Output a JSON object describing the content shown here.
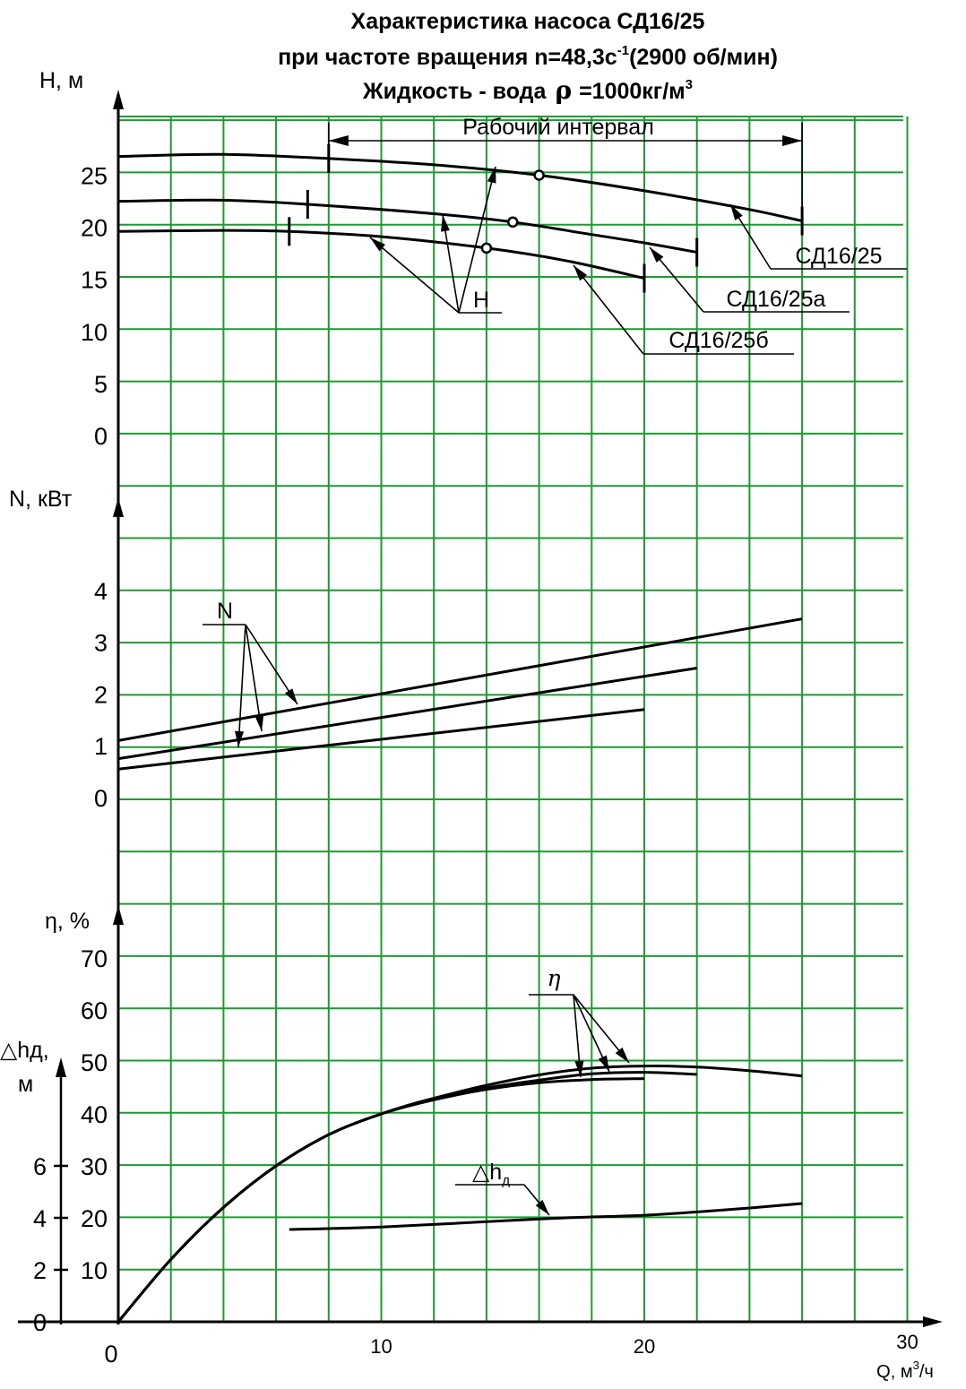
{
  "title": {
    "line1": "Характеристика насоса СД16/25",
    "line2_pre": "при частоте вращения n=48,3c",
    "line2_sup": "-1",
    "line2_post": "(2900 об/мин)",
    "line3_pre": "Жидкость - вода",
    "line3_rho": "ρ",
    "line3_post": "=1000кг/м",
    "line3_sup": "3"
  },
  "colors": {
    "grid": "#1e9a32",
    "curve": "#000000",
    "background": "#ffffff"
  },
  "chart_data": {
    "type": "line",
    "x_axis": {
      "label_pre": "Q, м",
      "label_sup": "3",
      "label_post": "/ч",
      "range": [
        0,
        30
      ],
      "ticks": [
        "0",
        "10",
        "20",
        "30"
      ]
    },
    "operating_interval": {
      "label": "Рабочий интервал",
      "range": [
        8,
        26
      ]
    },
    "panels": [
      {
        "name": "head",
        "axis_label": "Н, м",
        "ylim": [
          0,
          30
        ],
        "ticks": [
          "0",
          "5",
          "10",
          "15",
          "20",
          "25"
        ],
        "curve_label": "Н",
        "series": [
          {
            "name": "СД16/25",
            "x": [
              0,
              4,
              8,
              12,
              16,
              20,
              24,
              26
            ],
            "y": [
              26.8,
              27.0,
              26.6,
              26.0,
              25.0,
              23.5,
              21.7,
              20.6
            ],
            "limits": [
              8,
              26
            ],
            "point": [
              16,
              25.0
            ]
          },
          {
            "name": "СД16/25а",
            "x": [
              0,
              4,
              7.2,
              12,
              15,
              18,
              20,
              22
            ],
            "y": [
              22.5,
              22.6,
              22.2,
              21.3,
              20.5,
              19.3,
              18.5,
              17.6
            ],
            "limits": [
              7.2,
              22
            ],
            "point": [
              15,
              20.5
            ]
          },
          {
            "name": "СД16/25б",
            "x": [
              0,
              4,
              6.5,
              10,
              14,
              17,
              20
            ],
            "y": [
              19.6,
              19.7,
              19.6,
              19.1,
              18.0,
              16.8,
              15.1
            ],
            "limits": [
              6.5,
              20
            ],
            "point": [
              14,
              18.0
            ]
          }
        ]
      },
      {
        "name": "power",
        "axis_label": "N, кВт",
        "ylim": [
          0,
          4
        ],
        "ticks": [
          "0",
          "1",
          "2",
          "3",
          "4"
        ],
        "curve_label": "N",
        "series": [
          {
            "x": [
              0,
              26
            ],
            "y": [
              1.1,
              3.45
            ]
          },
          {
            "x": [
              0,
              22
            ],
            "y": [
              0.75,
              2.5
            ]
          },
          {
            "x": [
              0,
              20
            ],
            "y": [
              0.55,
              1.7
            ]
          }
        ]
      },
      {
        "name": "efficiency",
        "axis_label": "η, %",
        "ylim": [
          0,
          70
        ],
        "ticks": [
          "10",
          "20",
          "30",
          "40",
          "50",
          "60",
          "70"
        ],
        "curve_label": "η",
        "series": [
          {
            "x": [
              0,
              2,
              4,
              6,
              8,
              10,
              12,
              14,
              16,
              18,
              20,
              22,
              24,
              26
            ],
            "y": [
              0,
              12,
              22,
              30,
              36,
              40,
              43,
              45.5,
              47.5,
              48.8,
              49.2,
              49.0,
              48.3,
              47.3
            ]
          },
          {
            "x": [
              0,
              2,
              4,
              6,
              8,
              10,
              12,
              14,
              16,
              18,
              20,
              22
            ],
            "y": [
              0,
              12,
              22,
              30,
              36,
              40,
              43,
              45,
              46.5,
              47.7,
              48.0,
              47.6
            ]
          },
          {
            "x": [
              0,
              2,
              4,
              6,
              8,
              10,
              12,
              14,
              16,
              18,
              20
            ],
            "y": [
              0,
              12,
              22,
              30,
              36,
              40,
              42.7,
              44.7,
              46.0,
              46.6,
              46.8
            ]
          }
        ]
      },
      {
        "name": "npsh",
        "axis_label_1": "△hд,",
        "axis_label_2": "м",
        "ylim": [
          0,
          8
        ],
        "ticks": [
          "0",
          "2",
          "4",
          "6"
        ],
        "curve_label_pre": "△h",
        "curve_label_sub": "д",
        "series": [
          {
            "x": [
              6.5,
              10,
              14,
              17,
              20,
              23,
              26
            ],
            "y": [
              3.55,
              3.65,
              3.85,
              4.0,
              4.1,
              4.3,
              4.55
            ]
          }
        ]
      }
    ]
  }
}
